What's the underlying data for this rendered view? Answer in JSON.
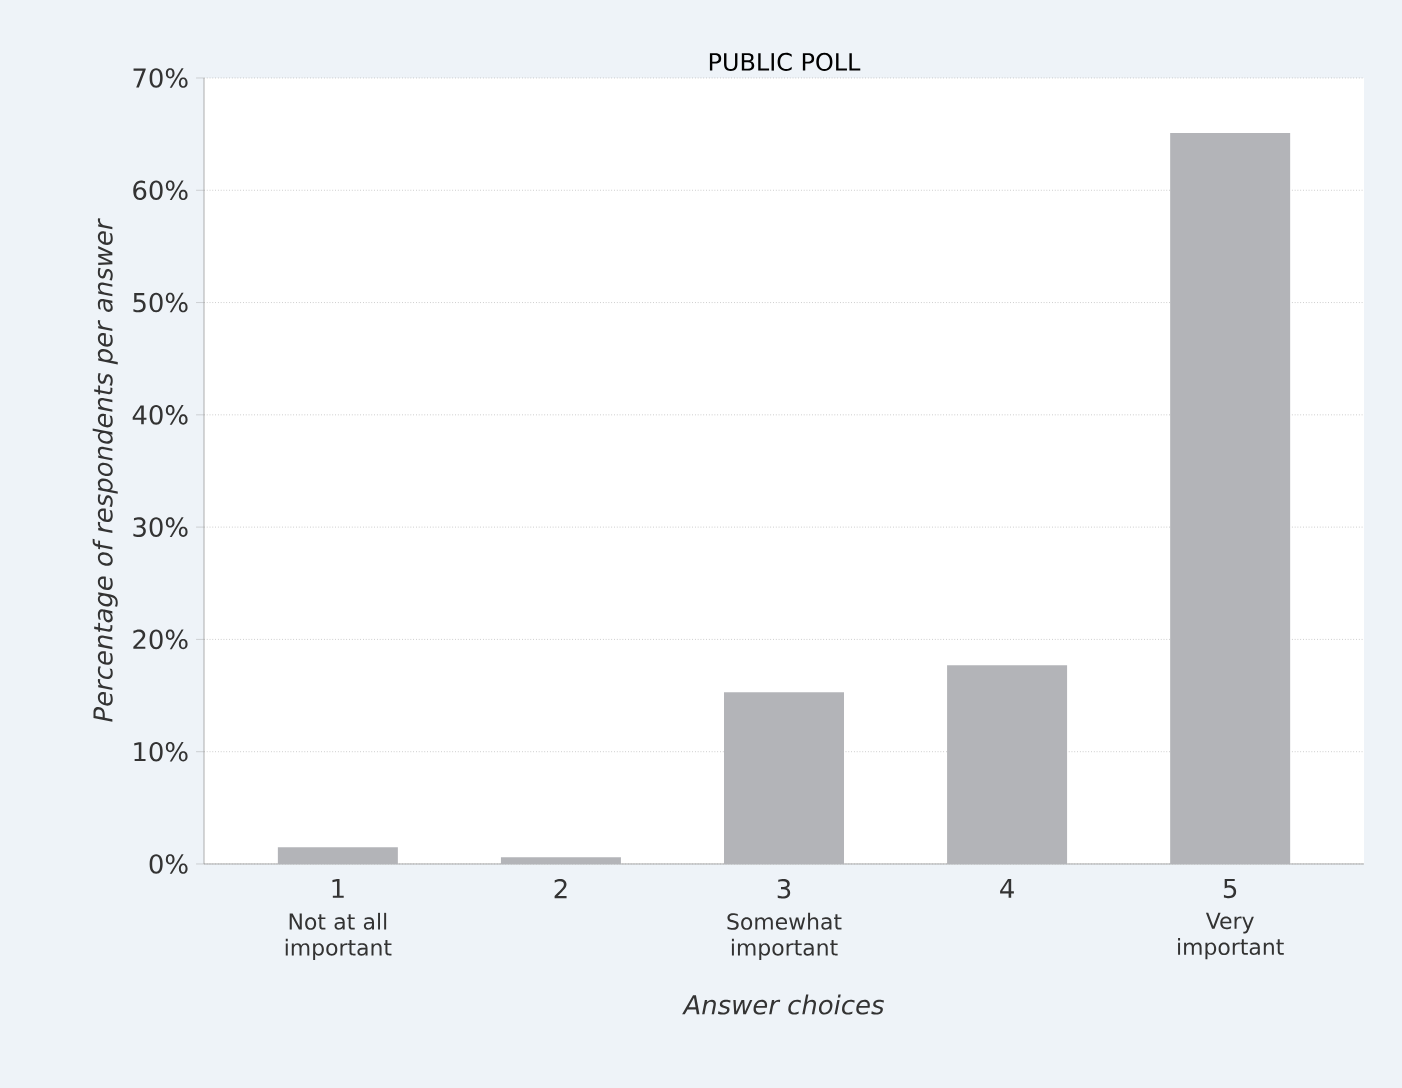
{
  "chart_data": {
    "type": "bar",
    "subtitle": "PUBLIC POLL",
    "xlabel": "Answer choices",
    "ylabel": "Percentage of respondents per answer",
    "categories": [
      "1",
      "2",
      "3",
      "4",
      "5"
    ],
    "values": [
      1.5,
      0.6,
      15.3,
      17.7,
      65.1
    ],
    "color": "#b3b4b8",
    "ylim": [
      0,
      70
    ],
    "yticks": [
      {
        "value": 0,
        "label": "0%"
      },
      {
        "value": 10,
        "label": "10%"
      },
      {
        "value": 20,
        "label": "20%"
      },
      {
        "value": 30,
        "label": "30%"
      },
      {
        "value": 40,
        "label": "40%"
      },
      {
        "value": 50,
        "label": "50%"
      },
      {
        "value": 60,
        "label": "60%"
      },
      {
        "value": 70,
        "label": "70%"
      }
    ],
    "grid": "y",
    "annotations": [
      "Not at all important",
      "Somewhat important",
      "Very important"
    ]
  }
}
